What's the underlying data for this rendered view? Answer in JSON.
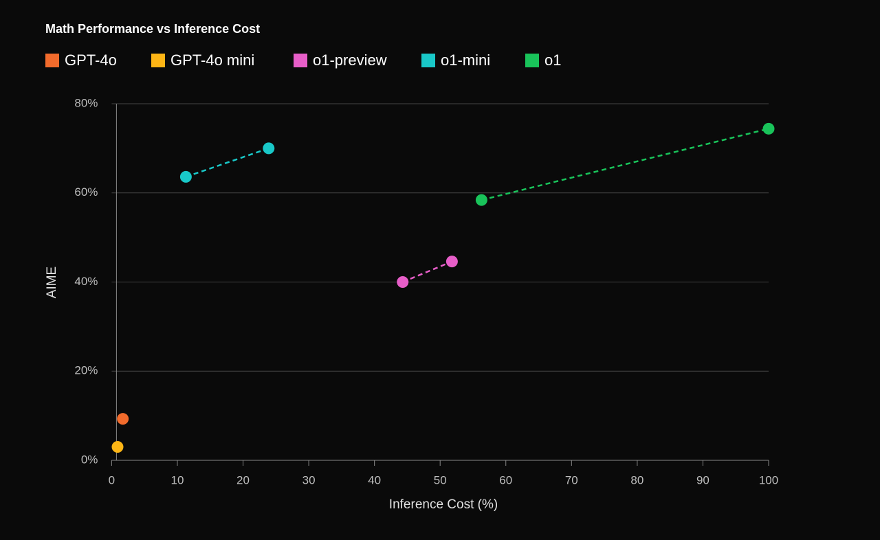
{
  "chart_data": {
    "type": "scatter",
    "title": "Math Performance vs Inference Cost",
    "x_label": "Inference Cost (%)",
    "y_label": "AIME",
    "series": [
      {
        "name": "GPT-4o",
        "color": "#f26b2c",
        "x": [
          1.7
        ],
        "values": [
          9.3
        ]
      },
      {
        "name": "GPT-4o mini",
        "color": "#fdb515",
        "x": [
          0.9
        ],
        "values": [
          3
        ]
      },
      {
        "name": "o1-preview",
        "color": "#e75ec8",
        "x": [
          44.3,
          51.8
        ],
        "values": [
          40,
          44.6
        ]
      },
      {
        "name": "o1-mini",
        "color": "#19c8c8",
        "x": [
          11.3,
          23.9
        ],
        "values": [
          63.6,
          70
        ]
      },
      {
        "name": "o1",
        "color": "#19c35a",
        "x": [
          56.3,
          100
        ],
        "values": [
          58.4,
          74.4
        ]
      }
    ],
    "xlim": [
      0,
      100
    ],
    "xticks": [
      0,
      10,
      20,
      30,
      40,
      50,
      60,
      70,
      80,
      90,
      100
    ],
    "ylim": [
      0,
      80
    ],
    "yticks": [
      {
        "value": 0,
        "label": "0%"
      },
      {
        "value": 20,
        "label": "20%"
      },
      {
        "value": 40,
        "label": "40%"
      },
      {
        "value": 60,
        "label": "60%"
      },
      {
        "value": 80,
        "label": "80%"
      }
    ],
    "grid": true
  }
}
